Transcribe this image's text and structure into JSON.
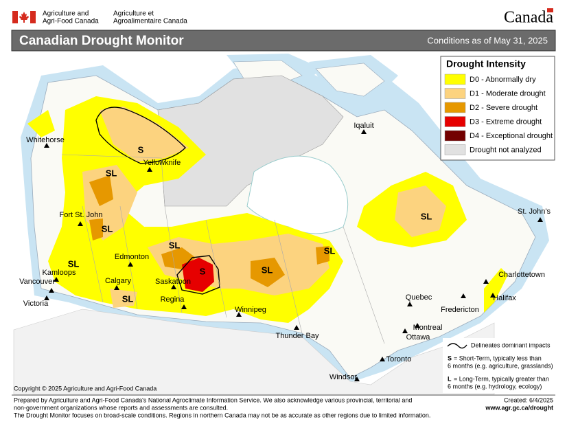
{
  "header": {
    "dept_en": [
      "Agriculture and",
      "Agri-Food Canada"
    ],
    "dept_fr": [
      "Agriculture et",
      "Agroalimentaire Canada"
    ],
    "wordmark": "Canada"
  },
  "title": "Canadian Drought Monitor",
  "subtitle": "Conditions as of May 31, 2025",
  "legend": {
    "title": "Drought Intensity",
    "items": [
      {
        "label": "D0 - Abnormally dry",
        "color": "#ffff00"
      },
      {
        "label": "D1 - Moderate drought",
        "color": "#fcd37f"
      },
      {
        "label": "D2 - Severe drought",
        "color": "#e69800"
      },
      {
        "label": "D3 - Extreme drought",
        "color": "#e60000"
      },
      {
        "label": "D4 - Exceptional drought",
        "color": "#730000"
      },
      {
        "label": "Drought not analyzed",
        "color": "#e1e1e1"
      }
    ]
  },
  "cities": [
    "Whitehorse",
    "Yellowknife",
    "Fort St. John",
    "Edmonton",
    "Kamloops",
    "Vancouver",
    "Victoria",
    "Calgary",
    "Saskatoon",
    "Regina",
    "Winnipeg",
    "Thunder Bay",
    "Iqaluit",
    "Quebec",
    "Montreal",
    "Ottawa",
    "Toronto",
    "Windsor",
    "Fredericton",
    "Halifax",
    "Charlottetown",
    "St. John's"
  ],
  "impact_labels": [
    "S",
    "SL",
    "SL",
    "SL",
    "SL",
    "SL",
    "S",
    "SL",
    "SL",
    "SL"
  ],
  "impacts_note": {
    "line": "Delineates dominant impacts",
    "short": {
      "key": "S",
      "text": [
        "= Short-Term, typically less than",
        "6 months (e.g. agriculture, grasslands)"
      ]
    },
    "long": {
      "key": "L",
      "text": [
        "= Long-Term, typically greater  than",
        "6 months (e.g. hydrology, ecology)"
      ]
    }
  },
  "copyright": "Copyright © 2025 Agriculture and Agri-Food Canada",
  "footer": {
    "lines": [
      "Prepared by Agriculture and Agri-Food Canada's National Agroclimate Information Service.  We also acknowledge various provincial, territorial and",
      "non-government organizations whose reports and assessments are consulted.",
      "The Drought Monitor focuses on broad-scale conditions.  Regions in northern Canada may not be as accurate as other regions due to limited information."
    ],
    "created": "Created: 6/4/2025",
    "url": "www.agr.gc.ca/drought"
  }
}
